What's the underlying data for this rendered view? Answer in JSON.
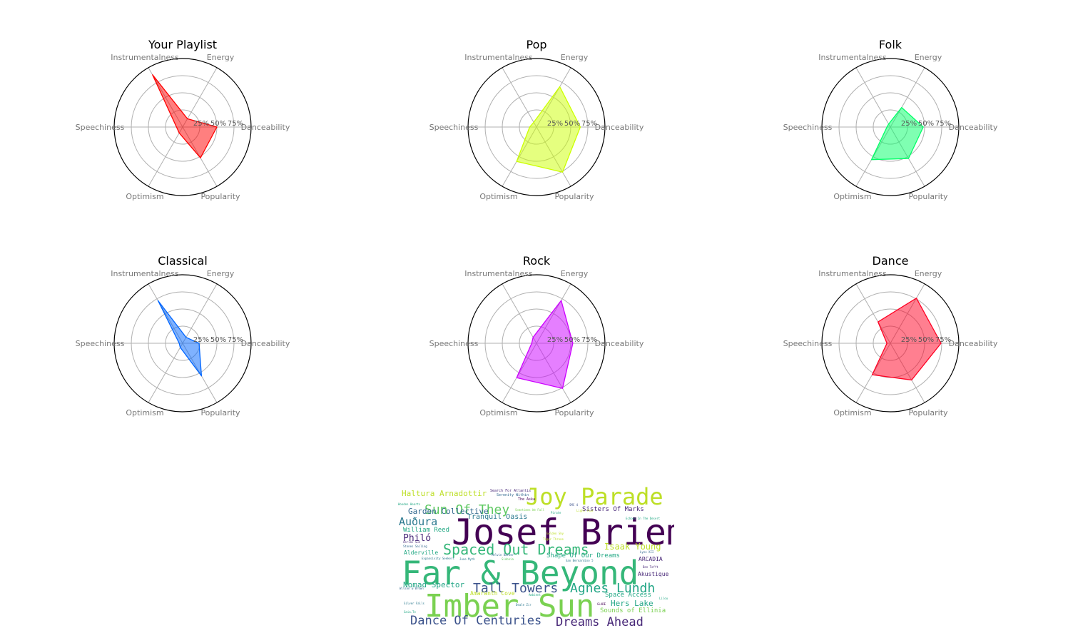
{
  "chart_data": {
    "type": "radar",
    "axes": [
      "Danceability",
      "Energy",
      "Instrumentalness",
      "Speechiness",
      "Optimism",
      "Popularity"
    ],
    "ring_labels": [
      "25%",
      "50%",
      "75%"
    ],
    "rlim": [
      0,
      1
    ],
    "charts": [
      {
        "title": "Your Playlist",
        "color": "#ff0000",
        "values": [
          0.5,
          0.14,
          0.88,
          0.09,
          0.1,
          0.52
        ]
      },
      {
        "title": "Pop",
        "color": "#ccff00",
        "values": [
          0.64,
          0.68,
          0.08,
          0.1,
          0.58,
          0.76
        ]
      },
      {
        "title": "Folk",
        "color": "#00ff66",
        "values": [
          0.48,
          0.33,
          0.05,
          0.05,
          0.55,
          0.53
        ]
      },
      {
        "title": "Classical",
        "color": "#0066ff",
        "values": [
          0.24,
          0.1,
          0.72,
          0.05,
          0.07,
          0.55
        ]
      },
      {
        "title": "Rock",
        "color": "#cc00ff",
        "values": [
          0.53,
          0.72,
          0.1,
          0.07,
          0.58,
          0.76
        ]
      },
      {
        "title": "Dance",
        "color": "#ff0022",
        "values": [
          0.74,
          0.76,
          0.36,
          0.05,
          0.53,
          0.62
        ]
      }
    ]
  },
  "wordcloud": [
    {
      "text": "Josef Briem",
      "size": 50,
      "color": "#440154"
    },
    {
      "text": "Far & Beyond",
      "size": 46,
      "color": "#35b779"
    },
    {
      "text": "Imber Sun",
      "size": 44,
      "color": "#7ad151"
    },
    {
      "text": "Joy Parade",
      "size": 32,
      "color": "#bddf26"
    },
    {
      "text": "Spaced Out Dreams",
      "size": 20,
      "color": "#35b779"
    },
    {
      "text": "Sun Of They",
      "size": 18,
      "color": "#5ec962"
    },
    {
      "text": "Tall Towers",
      "size": 18,
      "color": "#3b528b"
    },
    {
      "text": "Agnes Lundh",
      "size": 18,
      "color": "#21a585"
    },
    {
      "text": "Dance Of Centuries",
      "size": 17,
      "color": "#3b528b"
    },
    {
      "text": "Dreams Ahead",
      "size": 17,
      "color": "#482878"
    },
    {
      "text": "Auðura",
      "size": 15,
      "color": "#2a788e"
    },
    {
      "text": "Philó",
      "size": 13,
      "color": "#482878"
    },
    {
      "text": "Isaak Young",
      "size": 12,
      "color": "#bddf26"
    },
    {
      "text": "Haltura Arnadottir",
      "size": 11,
      "color": "#bddf26"
    },
    {
      "text": "Garden Collective",
      "size": 11,
      "color": "#31688e"
    },
    {
      "text": "Nomad Spector",
      "size": 11,
      "color": "#21a585"
    },
    {
      "text": "Hers Lake",
      "size": 11,
      "color": "#21a585"
    },
    {
      "text": "Tranquil Oasis",
      "size": 10,
      "color": "#2a788e"
    },
    {
      "text": "Sisters Of Marks",
      "size": 9,
      "color": "#482878"
    },
    {
      "text": "William Reed",
      "size": 9,
      "color": "#22a884"
    },
    {
      "text": "Shape Of Our Dreams",
      "size": 9,
      "color": "#22a884"
    },
    {
      "text": "Space Access",
      "size": 9,
      "color": "#22a884"
    },
    {
      "text": "Sounds of Ellinia",
      "size": 9,
      "color": "#7ad151"
    },
    {
      "text": "Alderville",
      "size": 8,
      "color": "#22a884"
    },
    {
      "text": "Amaranth Cove",
      "size": 8,
      "color": "#bddf26"
    },
    {
      "text": "ARCADIA",
      "size": 8,
      "color": "#482878"
    },
    {
      "text": "Akustique",
      "size": 8,
      "color": "#482878"
    },
    {
      "text": "Search For Atlantis",
      "size": 5,
      "color": "#482878"
    },
    {
      "text": "Serenity Within",
      "size": 5,
      "color": "#31688e"
    },
    {
      "text": "The Aska",
      "size": 5,
      "color": "#440154"
    },
    {
      "text": "Wooden Hearts",
      "size": 4,
      "color": "#22a884"
    },
    {
      "text": "Sometimes We Fall",
      "size": 4,
      "color": "#7ad151"
    },
    {
      "text": "Pirate",
      "size": 4,
      "color": "#22a884"
    },
    {
      "text": "Aerial Sun",
      "size": 4,
      "color": "#482878"
    },
    {
      "text": "Stones Sailing",
      "size": 4,
      "color": "#31688e"
    },
    {
      "text": "Melvin Barber",
      "size": 4,
      "color": "#31688e"
    },
    {
      "text": "Expansivity Seekers",
      "size": 4,
      "color": "#2a788e"
    },
    {
      "text": "Silver Falls",
      "size": 4,
      "color": "#2a788e"
    },
    {
      "text": "Gaia.Te",
      "size": 4,
      "color": "#22a884"
    },
    {
      "text": "Deale Zir",
      "size": 4,
      "color": "#2a788e"
    },
    {
      "text": "Lynx XII",
      "size": 4,
      "color": "#31688e"
    },
    {
      "text": "Ben Tofft",
      "size": 4,
      "color": "#482878"
    },
    {
      "text": "GLADE",
      "size": 4,
      "color": "#440154"
    },
    {
      "text": "Lilou",
      "size": 4,
      "color": "#22a884"
    },
    {
      "text": "San Bernardino 5",
      "size": 4,
      "color": "#2a788e"
    },
    {
      "text": "Echoes In The Desert",
      "size": 4,
      "color": "#22a884"
    },
    {
      "text": "Tiger Throne",
      "size": 4,
      "color": "#bddf26"
    },
    {
      "text": "Golden Sky",
      "size": 4,
      "color": "#bddf26"
    },
    {
      "text": "Ambient",
      "size": 4,
      "color": "#22a884"
    },
    {
      "text": "Wilson & Brown",
      "size": 4,
      "color": "#31688e"
    },
    {
      "text": "Light Year",
      "size": 4,
      "color": "#bddf26"
    },
    {
      "text": "SMC 4",
      "size": 4,
      "color": "#3b528b"
    },
    {
      "text": "June Myth",
      "size": 4,
      "color": "#2a788e"
    },
    {
      "text": "Sidonia",
      "size": 4,
      "color": "#5ec962"
    }
  ]
}
